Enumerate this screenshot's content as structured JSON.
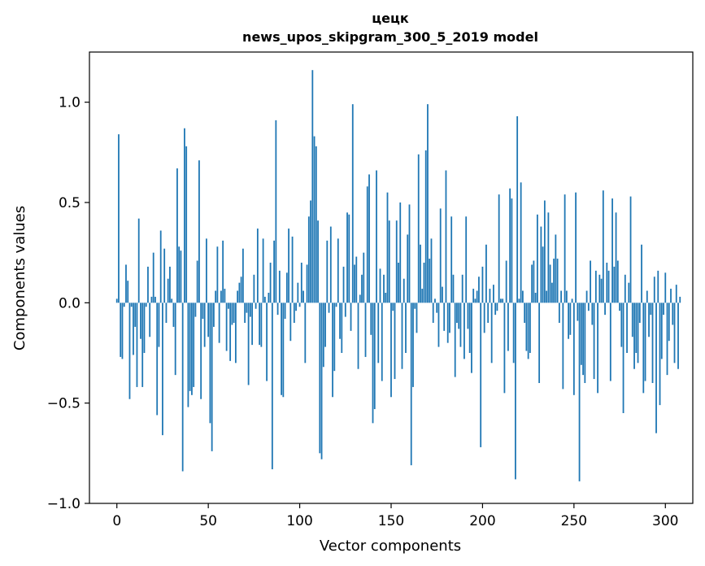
{
  "chart_data": {
    "type": "bar",
    "title": "цецк",
    "subtitle": "news_upos_skipgram_300_5_2019 model",
    "xlabel": "Vector components",
    "ylabel": "Components values",
    "xlim": [
      -15,
      315
    ],
    "ylim": [
      -1.0,
      1.25
    ],
    "xticks": [
      0,
      50,
      100,
      150,
      200,
      250,
      300
    ],
    "xtick_labels": [
      "0",
      "50",
      "100",
      "150",
      "200",
      "250",
      "300"
    ],
    "yticks": [
      -1.0,
      -0.5,
      0.0,
      0.5,
      1.0
    ],
    "ytick_labels": [
      "−1.0",
      "−0.5",
      "0.0",
      "0.5",
      "1.0"
    ],
    "bar_color": "#1f77b4",
    "grid": false,
    "legend": "none",
    "values": [
      0.02,
      0.84,
      -0.27,
      -0.28,
      -0.02,
      0.19,
      0.11,
      -0.48,
      -0.02,
      -0.26,
      -0.12,
      -0.42,
      0.42,
      -0.18,
      -0.42,
      -0.25,
      -0.02,
      0.18,
      -0.17,
      0.03,
      0.25,
      0.03,
      -0.56,
      -0.22,
      0.36,
      -0.66,
      0.27,
      -0.1,
      0.12,
      0.18,
      0.02,
      -0.12,
      -0.36,
      0.67,
      0.28,
      0.26,
      -0.84,
      0.87,
      0.78,
      -0.52,
      -0.44,
      -0.46,
      -0.42,
      -0.07,
      0.21,
      0.71,
      -0.48,
      -0.08,
      -0.22,
      0.32,
      -0.17,
      -0.6,
      -0.74,
      -0.12,
      0.06,
      0.28,
      -0.2,
      0.06,
      0.31,
      0.07,
      -0.24,
      -0.03,
      -0.29,
      -0.11,
      -0.1,
      -0.3,
      0.06,
      0.1,
      0.13,
      0.27,
      -0.1,
      -0.05,
      -0.41,
      -0.07,
      -0.21,
      0.14,
      -0.03,
      0.37,
      -0.21,
      -0.22,
      0.32,
      0.03,
      -0.39,
      0.05,
      0.2,
      -0.83,
      0.31,
      0.91,
      -0.06,
      0.16,
      -0.46,
      -0.47,
      -0.08,
      0.15,
      0.37,
      -0.19,
      0.33,
      -0.1,
      -0.04,
      0.1,
      -0.02,
      0.2,
      0.06,
      -0.3,
      0.19,
      0.43,
      0.51,
      1.16,
      0.83,
      0.78,
      0.41,
      -0.75,
      -0.78,
      -0.32,
      -0.22,
      0.31,
      -0.05,
      0.38,
      -0.47,
      -0.34,
      -0.02,
      0.32,
      -0.18,
      -0.25,
      0.18,
      -0.07,
      0.45,
      0.44,
      -0.14,
      0.99,
      0.19,
      0.23,
      -0.33,
      0.04,
      0.14,
      0.25,
      -0.27,
      0.58,
      0.64,
      -0.16,
      -0.6,
      -0.53,
      0.66,
      -0.3,
      0.17,
      -0.39,
      0.14,
      0.05,
      0.55,
      0.41,
      -0.47,
      -0.04,
      -0.38,
      0.41,
      0.2,
      0.5,
      -0.33,
      0.12,
      -0.25,
      0.34,
      0.49,
      -0.81,
      -0.42,
      -0.03,
      -0.15,
      0.74,
      0.29,
      0.07,
      0.2,
      0.76,
      0.99,
      0.22,
      0.32,
      -0.1,
      0.02,
      -0.05,
      -0.22,
      0.47,
      0.08,
      -0.14,
      0.66,
      -0.2,
      -0.15,
      0.43,
      0.14,
      -0.37,
      -0.1,
      -0.13,
      -0.22,
      0.14,
      -0.28,
      0.43,
      -0.13,
      -0.25,
      -0.35,
      0.07,
      0.02,
      0.06,
      0.13,
      -0.72,
      0.18,
      -0.15,
      0.29,
      -0.1,
      0.07,
      -0.3,
      0.09,
      -0.06,
      -0.04,
      0.54,
      0.02,
      0.02,
      -0.45,
      0.21,
      -0.24,
      0.57,
      0.52,
      -0.3,
      -0.88,
      0.93,
      0.02,
      0.6,
      0.06,
      -0.1,
      -0.24,
      -0.28,
      -0.25,
      0.19,
      0.21,
      0.05,
      0.44,
      -0.4,
      0.38,
      0.28,
      0.51,
      0.06,
      0.45,
      0.19,
      0.1,
      0.22,
      0.34,
      0.22,
      -0.1,
      0.06,
      -0.43,
      0.54,
      0.06,
      -0.18,
      -0.16,
      0.02,
      -0.46,
      0.55,
      -0.09,
      -0.89,
      -0.31,
      -0.36,
      -0.4,
      0.06,
      -0.04,
      0.21,
      -0.11,
      -0.38,
      0.16,
      -0.45,
      0.14,
      0.12,
      0.56,
      -0.06,
      0.2,
      0.16,
      -0.39,
      0.52,
      0.18,
      0.45,
      0.21,
      -0.04,
      -0.22,
      -0.55,
      0.14,
      -0.25,
      0.1,
      0.53,
      -0.17,
      -0.33,
      -0.25,
      -0.3,
      -0.1,
      0.29,
      -0.45,
      -0.39,
      0.06,
      -0.17,
      -0.06,
      -0.4,
      0.13,
      -0.65,
      0.16,
      -0.51,
      -0.28,
      -0.06,
      0.15,
      -0.36,
      -0.19,
      0.07,
      -0.11,
      -0.3,
      0.09,
      -0.33,
      0.03
    ]
  }
}
